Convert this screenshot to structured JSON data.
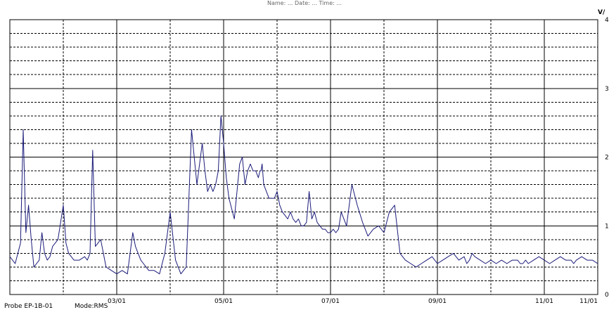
{
  "header": {
    "title_text": "Name: ...           Date: ...          Time: ..."
  },
  "footer": {
    "probe": "Probe EP-1B-01",
    "mode": "Mode:RMS"
  },
  "chart_data": {
    "type": "line",
    "ylabel": "V/",
    "ylim": [
      0,
      4
    ],
    "y_ticks": [
      0,
      1,
      2,
      3,
      4
    ],
    "y_tick_labels": [
      "0",
      "1",
      "2",
      "3",
      "4"
    ],
    "x_tick_labels": [
      "03/01",
      "05/01",
      "07/01",
      "09/01",
      "11/01",
      "11/01"
    ],
    "x_tick_positions": [
      2,
      4,
      6,
      8,
      10,
      11
    ],
    "x_range": [
      0,
      11
    ],
    "grid": true,
    "series": [
      {
        "color": "#1b1b7a",
        "x": [
          0,
          0.1,
          0.2,
          0.25,
          0.3,
          0.35,
          0.4,
          0.45,
          0.5,
          0.55,
          0.6,
          0.65,
          0.7,
          0.75,
          0.8,
          0.9,
          1.0,
          1.05,
          1.1,
          1.15,
          1.2,
          1.3,
          1.4,
          1.45,
          1.5,
          1.55,
          1.6,
          1.7,
          1.8,
          1.9,
          2.0,
          2.1,
          2.2,
          2.3,
          2.35,
          2.4,
          2.45,
          2.5,
          2.55,
          2.6,
          2.7,
          2.8,
          2.9,
          3.0,
          3.1,
          3.2,
          3.3,
          3.4,
          3.5,
          3.6,
          3.65,
          3.7,
          3.75,
          3.8,
          3.85,
          3.9,
          3.95,
          4.0,
          4.05,
          4.1,
          4.2,
          4.3,
          4.35,
          4.4,
          4.45,
          4.5,
          4.55,
          4.6,
          4.65,
          4.68,
          4.7,
          4.72,
          4.75,
          4.8,
          4.85,
          4.9,
          4.95,
          5.0,
          5.05,
          5.1,
          5.15,
          5.2,
          5.25,
          5.3,
          5.35,
          5.4,
          5.45,
          5.5,
          5.55,
          5.6,
          5.65,
          5.7,
          5.75,
          5.8,
          5.85,
          5.9,
          5.95,
          6.0,
          6.05,
          6.1,
          6.15,
          6.2,
          6.3,
          6.4,
          6.5,
          6.6,
          6.7,
          6.8,
          6.9,
          7.0,
          7.1,
          7.2,
          7.3,
          7.4,
          7.5,
          7.6,
          7.7,
          7.8,
          7.9,
          8.0,
          8.1,
          8.2,
          8.3,
          8.4,
          8.5,
          8.55,
          8.6,
          8.65,
          8.7,
          8.8,
          8.9,
          9.0,
          9.1,
          9.2,
          9.3,
          9.4,
          9.5,
          9.55,
          9.6,
          9.65,
          9.7,
          9.8,
          9.9,
          10.0,
          10.1,
          10.2,
          10.3,
          10.4,
          10.5,
          10.55,
          10.6,
          10.7,
          10.8,
          10.9,
          11.0
        ],
        "values": [
          0.55,
          0.45,
          0.75,
          2.4,
          0.9,
          1.3,
          0.8,
          0.4,
          0.45,
          0.5,
          0.9,
          0.6,
          0.5,
          0.55,
          0.7,
          0.8,
          1.3,
          0.75,
          0.6,
          0.55,
          0.5,
          0.5,
          0.55,
          0.5,
          0.6,
          2.1,
          0.7,
          0.8,
          0.4,
          0.35,
          0.3,
          0.35,
          0.3,
          0.9,
          0.7,
          0.6,
          0.5,
          0.45,
          0.4,
          0.35,
          0.35,
          0.3,
          0.6,
          1.2,
          0.5,
          0.3,
          0.4,
          2.4,
          1.6,
          2.2,
          1.8,
          1.5,
          1.6,
          1.5,
          1.6,
          1.8,
          2.6,
          2.2,
          1.7,
          1.4,
          1.1,
          1.9,
          2.0,
          1.6,
          1.8,
          1.9,
          1.8,
          1.8,
          1.7,
          1.8,
          1.8,
          1.9,
          1.6,
          1.5,
          1.4,
          1.4,
          1.4,
          1.5,
          1.3,
          1.2,
          1.15,
          1.1,
          1.2,
          1.1,
          1.05,
          1.1,
          1.0,
          1.0,
          1.05,
          1.5,
          1.1,
          1.2,
          1.05,
          1.0,
          0.95,
          0.95,
          0.9,
          0.9,
          0.95,
          0.9,
          0.95,
          1.2,
          1.0,
          1.6,
          1.3,
          1.05,
          0.85,
          0.95,
          1.0,
          0.9,
          1.2,
          1.3,
          0.6,
          0.5,
          0.45,
          0.4,
          0.45,
          0.5,
          0.55,
          0.45,
          0.5,
          0.55,
          0.6,
          0.5,
          0.55,
          0.45,
          0.5,
          0.6,
          0.55,
          0.5,
          0.45,
          0.5,
          0.45,
          0.5,
          0.45,
          0.5,
          0.5,
          0.45,
          0.45,
          0.5,
          0.45,
          0.5,
          0.55,
          0.5,
          0.45,
          0.5,
          0.55,
          0.5,
          0.5,
          0.45,
          0.5,
          0.55,
          0.5,
          0.5,
          0.45
        ]
      }
    ]
  }
}
